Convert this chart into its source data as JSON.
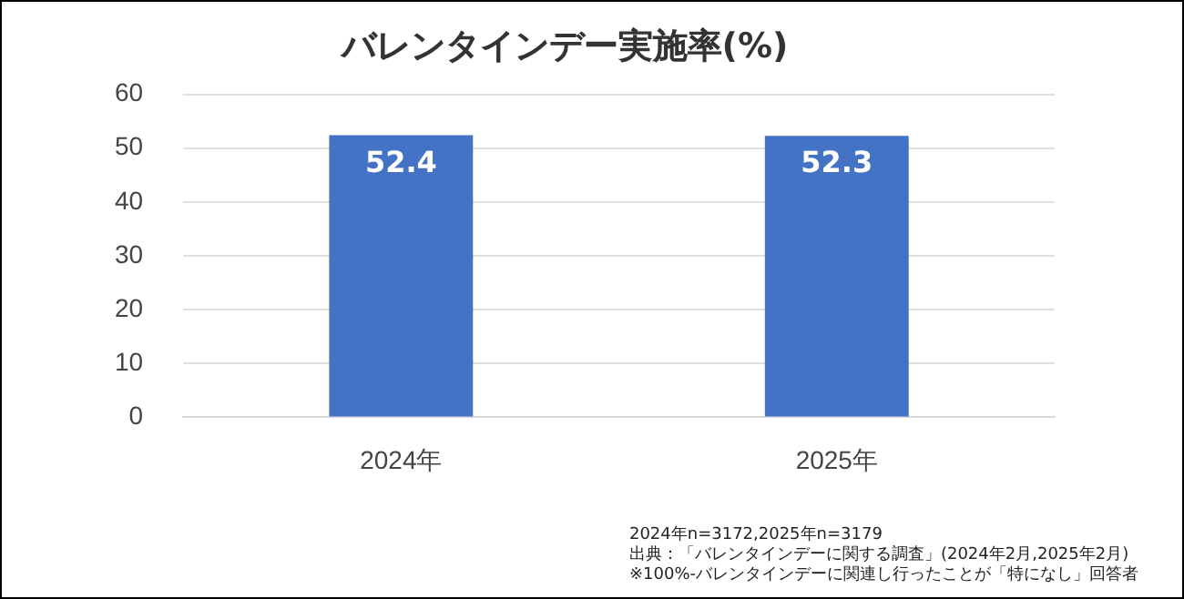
{
  "chart_data": {
    "type": "bar",
    "title": "バレンタインデー実施率(%)",
    "categories": [
      "2024年",
      "2025年"
    ],
    "values": [
      52.4,
      52.3
    ],
    "color": "#4472c4",
    "ylim": [
      0,
      60
    ],
    "yticks": [
      0,
      10,
      20,
      30,
      40,
      50,
      60
    ],
    "grid": "y",
    "data_labels": true,
    "legend": false,
    "annotations": [
      "2024年n=3172,2025年n=3179",
      "出典：「バレンタインデーに関する調査」(2024年2月,2025年2月)",
      "※100%-バレンタインデーに関連し行ったことが「特になし」回答者"
    ]
  }
}
